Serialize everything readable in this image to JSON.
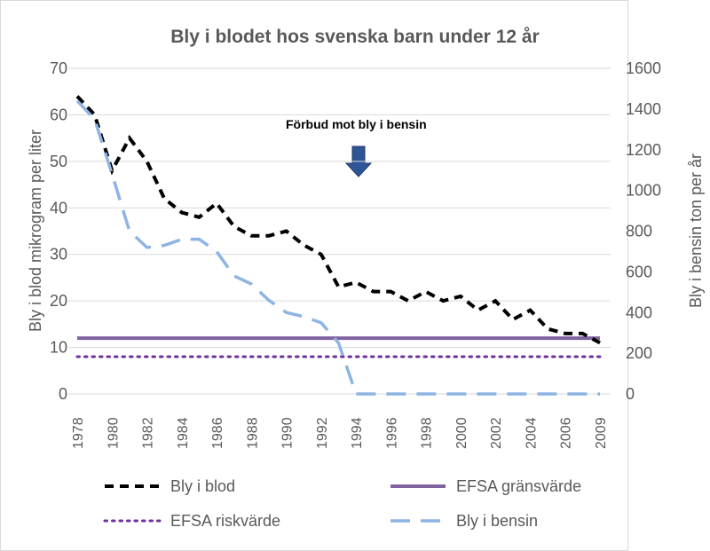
{
  "chart_data": {
    "type": "line",
    "title": "Bly i blodet hos svenska barn under 12 år",
    "y_label": "Bly i blod mikrogram per liter",
    "y2_label": "Bly i bensin ton per år",
    "annotation": "Förbud mot bly i bensin",
    "categories": [
      "1978",
      null,
      "1980",
      null,
      "1982",
      null,
      "1984",
      null,
      "1986",
      null,
      "1988",
      null,
      "1990",
      null,
      "1992",
      null,
      "1994",
      null,
      "1996",
      null,
      "1998",
      null,
      "2000",
      null,
      "2002",
      null,
      "2004",
      null,
      "2006",
      null,
      "2009"
    ],
    "ylim": [
      0,
      70
    ],
    "yticks": [
      0,
      10,
      20,
      30,
      40,
      50,
      60,
      70
    ],
    "y2lim": [
      0,
      1600
    ],
    "y2ticks": [
      0,
      200,
      400,
      600,
      800,
      1000,
      1200,
      1400,
      1600
    ],
    "grid": true,
    "series": [
      {
        "name": "Bly i blod",
        "color": "#000000",
        "style": "dashed",
        "values": [
          64,
          60,
          48,
          55,
          50,
          42,
          39,
          38,
          41,
          36,
          34,
          34,
          35,
          32,
          30,
          23,
          24,
          22,
          22,
          20,
          22,
          20,
          21,
          18,
          20,
          16,
          18,
          14,
          13,
          13,
          11
        ]
      },
      {
        "name": "EFSA gränsvärde",
        "color": "#8064a2",
        "style": "solid",
        "values": [
          12,
          12,
          12,
          12,
          12,
          12,
          12,
          12,
          12,
          12,
          12,
          12,
          12,
          12,
          12,
          12,
          12,
          12,
          12,
          12,
          12,
          12,
          12,
          12,
          12,
          12,
          12,
          12,
          12,
          12,
          12
        ]
      },
      {
        "name": "EFSA riskvärde",
        "color": "#7030a0",
        "style": "dotted",
        "values": [
          8,
          8,
          8,
          8,
          8,
          8,
          8,
          8,
          8,
          8,
          8,
          8,
          8,
          8,
          8,
          8,
          8,
          8,
          8,
          8,
          8,
          8,
          8,
          8,
          8,
          8,
          8,
          8,
          8,
          8,
          8
        ]
      },
      {
        "name": "Bly i bensin",
        "color": "#8eb4e3",
        "style": "longdash",
        "axis": "y2",
        "values": [
          1440,
          1350,
          1080,
          800,
          720,
          730,
          760,
          760,
          700,
          580,
          540,
          460,
          400,
          380,
          350,
          250,
          0,
          0,
          0,
          0,
          0,
          0,
          0,
          0,
          0,
          0,
          0,
          0,
          0,
          0,
          0
        ]
      }
    ]
  }
}
